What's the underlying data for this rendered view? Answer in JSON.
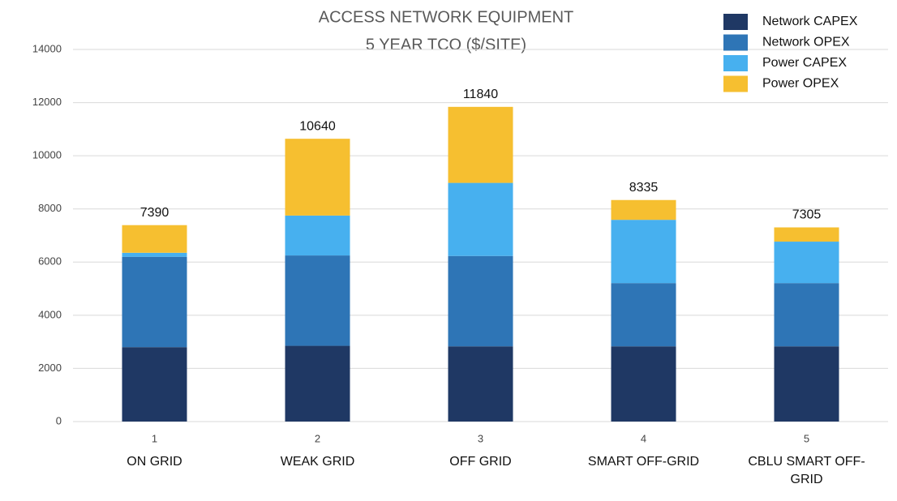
{
  "chart_data": {
    "type": "stacked_bar",
    "title": "ACCESS NETWORK EQUIPMENT",
    "subtitle": "5 YEAR TCO ($/SITE)",
    "categories": [
      "1",
      "2",
      "3",
      "4",
      "5"
    ],
    "category_labels": [
      "ON GRID",
      "WEAK GRID",
      "OFF GRID",
      "SMART OFF-GRID",
      "CBLU SMART OFF-GRID"
    ],
    "series": [
      {
        "name": "Network CAPEX",
        "color": "#1f3864",
        "values": [
          2800,
          2850,
          2830,
          2830,
          2830
        ]
      },
      {
        "name": "Network OPEX",
        "color": "#2e75b6",
        "values": [
          3400,
          3400,
          3400,
          2380,
          2380
        ]
      },
      {
        "name": "Power CAPEX",
        "color": "#47b0ef",
        "values": [
          150,
          1500,
          2750,
          2380,
          1560
        ]
      },
      {
        "name": "Power OPEX",
        "color": "#f6bf30",
        "values": [
          1040,
          2890,
          2860,
          745,
          535
        ]
      }
    ],
    "totals": [
      7390,
      10640,
      11840,
      8335,
      7305
    ],
    "ylim": [
      0,
      14000
    ],
    "yticks": [
      0,
      2000,
      4000,
      6000,
      8000,
      10000,
      12000,
      14000
    ],
    "grid": true,
    "legend": "top-right"
  }
}
